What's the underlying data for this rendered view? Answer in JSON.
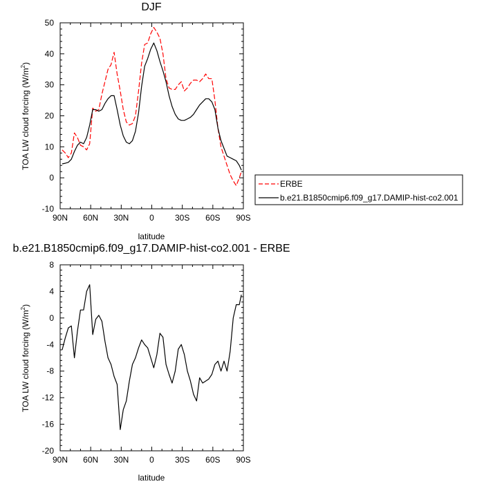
{
  "chart_data": [
    {
      "type": "line",
      "title": "DJF",
      "xlabel": "latitude",
      "ylabel": "TOA LW cloud forcing (W/m",
      "ylabel_sup": "2",
      "ylabel_end": ")",
      "xlim": [
        90,
        -90
      ],
      "ylim": [
        -10,
        50
      ],
      "xticks": [
        90,
        60,
        30,
        0,
        -30,
        -60,
        -90
      ],
      "xticklabels": [
        "90N",
        "60N",
        "30N",
        "0",
        "30S",
        "60S",
        "90S"
      ],
      "yticks": [
        -10,
        0,
        10,
        20,
        30,
        40,
        50
      ],
      "yticklabels": [
        "-10",
        "0",
        "10",
        "20",
        "30",
        "40",
        "50"
      ],
      "grid": false,
      "legend_position": "right",
      "series": [
        {
          "name": "ERBE",
          "color": "#ff0000",
          "dash": "dashed",
          "x": [
            88,
            85,
            82,
            79,
            76,
            73,
            70,
            67,
            64,
            61,
            58,
            55,
            52,
            49,
            46,
            43,
            40,
            37,
            34,
            31,
            28,
            25,
            22,
            19,
            16,
            13,
            10,
            7,
            4,
            1,
            -2,
            -5,
            -8,
            -11,
            -14,
            -17,
            -20,
            -23,
            -26,
            -29,
            -32,
            -35,
            -38,
            -41,
            -44,
            -47,
            -50,
            -53,
            -56,
            -59,
            -62,
            -65,
            -68,
            -71,
            -74,
            -77,
            -80,
            -83,
            -86,
            -88
          ],
          "y": [
            9,
            8,
            6.5,
            8,
            14.5,
            13,
            10.5,
            10,
            9,
            11,
            22.5,
            21.5,
            22,
            27,
            31,
            35,
            36.5,
            40.5,
            33.5,
            28,
            22,
            18,
            17,
            17.5,
            20,
            28,
            37,
            43,
            43.5,
            46.5,
            48.5,
            47,
            45,
            40,
            32,
            29,
            28.5,
            28.5,
            30,
            31,
            28,
            29,
            30.5,
            31.5,
            31.5,
            31,
            32,
            33.5,
            32,
            32,
            25,
            16,
            10,
            7,
            4,
            1,
            -1,
            -2.5,
            0,
            2
          ]
        },
        {
          "name": "b.e21.B1850cmip6.f09_g17.DAMIP-hist-co2.001",
          "color": "#000000",
          "dash": "solid",
          "x": [
            88,
            85,
            82,
            79,
            76,
            73,
            70,
            67,
            64,
            61,
            58,
            55,
            52,
            49,
            46,
            43,
            40,
            37,
            34,
            31,
            28,
            25,
            22,
            19,
            16,
            13,
            10,
            7,
            4,
            1,
            -2,
            -5,
            -8,
            -11,
            -14,
            -17,
            -20,
            -23,
            -26,
            -29,
            -32,
            -35,
            -38,
            -41,
            -44,
            -47,
            -50,
            -53,
            -56,
            -59,
            -62,
            -65,
            -68,
            -71,
            -74,
            -77,
            -80,
            -83,
            -86,
            -88
          ],
          "y": [
            4.5,
            4.7,
            5,
            6,
            8.5,
            10.5,
            11.5,
            11,
            13,
            17,
            22,
            22,
            21.5,
            22,
            24,
            25.5,
            26.5,
            26.5,
            22,
            17,
            13.5,
            11.5,
            11,
            12,
            15,
            21,
            29.5,
            36,
            38.5,
            41.5,
            43.5,
            41,
            37.5,
            34.5,
            31,
            26.5,
            23,
            20.5,
            19,
            18.5,
            18.5,
            19,
            19.5,
            20.5,
            22,
            23.5,
            24.5,
            25.5,
            25.5,
            24.5,
            22,
            16,
            12,
            9.5,
            7,
            6.5,
            6,
            5.5,
            4,
            2.5
          ]
        }
      ]
    },
    {
      "type": "line",
      "title": "b.e21.B1850cmip6.f09_g17.DAMIP-hist-co2.001 - ERBE",
      "xlabel": "latitude",
      "ylabel": "TOA LW cloud forcing (W/m",
      "ylabel_sup": "2",
      "ylabel_end": ")",
      "xlim": [
        90,
        -90
      ],
      "ylim": [
        -20,
        8
      ],
      "xticks": [
        90,
        60,
        30,
        0,
        -30,
        -60,
        -90
      ],
      "xticklabels": [
        "90N",
        "60N",
        "30N",
        "0",
        "30S",
        "60S",
        "90S"
      ],
      "yticks": [
        -20,
        -16,
        -12,
        -8,
        -4,
        0,
        4,
        8
      ],
      "yticklabels": [
        "-20",
        "-16",
        "-12",
        "-8",
        "-4",
        "0",
        "4",
        "8"
      ],
      "grid": false,
      "series": [
        {
          "name": "",
          "color": "#000000",
          "dash": "solid",
          "x": [
            88,
            85,
            82,
            79,
            76,
            73,
            70,
            67,
            64,
            61,
            58,
            55,
            52,
            49,
            46,
            43,
            40,
            37,
            34,
            31,
            28,
            25,
            22,
            19,
            16,
            13,
            10,
            7,
            4,
            1,
            -2,
            -5,
            -8,
            -11,
            -14,
            -17,
            -20,
            -23,
            -26,
            -29,
            -32,
            -35,
            -38,
            -41,
            -44,
            -47,
            -50,
            -53,
            -56,
            -59,
            -62,
            -65,
            -68,
            -71,
            -74,
            -77,
            -80,
            -83,
            -86,
            -88
          ],
          "y": [
            -4.8,
            -3,
            -1.5,
            -1.2,
            -6,
            -2,
            1.2,
            1.2,
            4,
            5,
            -2.5,
            -0.2,
            0.4,
            -0.5,
            -3.5,
            -6,
            -7,
            -8.8,
            -10,
            -16.8,
            -13.8,
            -12.5,
            -9.5,
            -7,
            -6,
            -4.5,
            -3.3,
            -4,
            -4.5,
            -6,
            -7.5,
            -5.5,
            -2.3,
            -2.9,
            -7,
            -8.5,
            -9.8,
            -8,
            -4.7,
            -4,
            -5.5,
            -8,
            -9.5,
            -11.5,
            -12.5,
            -9,
            -9.8,
            -9.5,
            -9.2,
            -8.5,
            -7,
            -6.5,
            -8,
            -6.5,
            -8,
            -5,
            0,
            2,
            2,
            3.5
          ]
        }
      ]
    }
  ]
}
